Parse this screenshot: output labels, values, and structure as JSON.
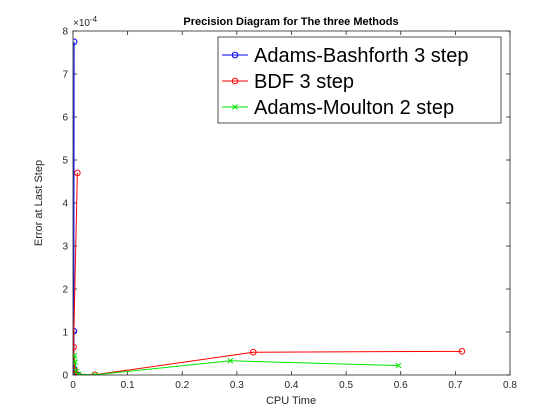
{
  "chart_data": {
    "type": "line",
    "title": "Precision Diagram for The three Methods",
    "xlabel": "CPU Time",
    "ylabel": "Error at Last Step",
    "xlim": [
      0,
      0.8
    ],
    "ylim": [
      0,
      8
    ],
    "y_multiplier_label": "×10",
    "y_multiplier_exp": "-4",
    "x_ticks": [
      0,
      0.1,
      0.2,
      0.3,
      0.4,
      0.5,
      0.6,
      0.7,
      0.8
    ],
    "x_tick_labels": [
      "0",
      "0.1",
      "0.2",
      "0.3",
      "0.4",
      "0.5",
      "0.6",
      "0.7",
      "0.8"
    ],
    "y_ticks": [
      0,
      1,
      2,
      3,
      4,
      5,
      6,
      7,
      8
    ],
    "y_tick_labels": [
      "0",
      "1",
      "2",
      "3",
      "4",
      "5",
      "6",
      "7",
      "8"
    ],
    "grid": false,
    "legend_position": "top-right",
    "series": [
      {
        "name": "Adams-Bashforth 3 step",
        "color": "#0000ff",
        "marker": "circle",
        "x": [
          0.002,
          0.0015,
          0.002,
          0.003,
          0.004,
          0.005,
          0.007,
          0.009
        ],
        "y": [
          7.75,
          1.02,
          0.15,
          0.05,
          0.02,
          0.01,
          0.005,
          0.002
        ]
      },
      {
        "name": "BDF 3 step",
        "color": "#ff0000",
        "marker": "circle",
        "x": [
          0.008,
          0.001,
          0.003,
          0.005,
          0.04,
          0.33,
          0.712
        ],
        "y": [
          4.7,
          0.65,
          0.1,
          0.02,
          0.005,
          0.53,
          0.55
        ]
      },
      {
        "name": "Adams-Moulton 2 step",
        "color": "#00e600",
        "marker": "x",
        "x": [
          0.003,
          0.004,
          0.006,
          0.01,
          0.04,
          0.288,
          0.596
        ],
        "y": [
          0.45,
          0.3,
          0.08,
          0.02,
          0.003,
          0.33,
          0.22
        ]
      }
    ]
  }
}
